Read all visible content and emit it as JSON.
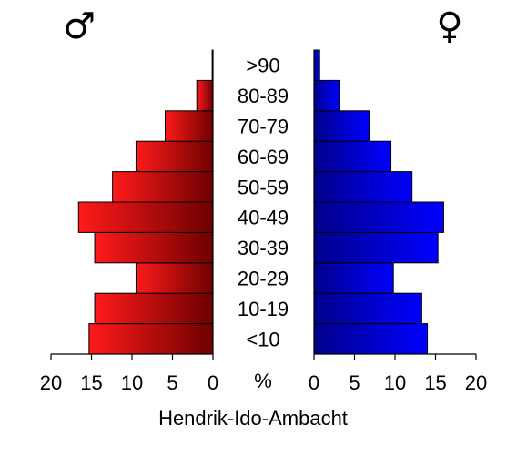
{
  "symbols": {
    "male": "♂",
    "female": "♀"
  },
  "colors": {
    "male_light": "#ff1a1a",
    "male_dark": "#6e0000",
    "female_light": "#0000ff",
    "female_dark": "#00008a",
    "bar_stroke": "#000000"
  },
  "chart_data": {
    "type": "bar",
    "subtype": "population-pyramid",
    "title": "Hendrik-Ido-Ambacht",
    "unit_label": "%",
    "categories": [
      "<10",
      "10-19",
      "20-29",
      "30-39",
      "40-49",
      "50-59",
      "60-69",
      "70-79",
      "80-89",
      ">90"
    ],
    "series": [
      {
        "sex": "male",
        "values": [
          15.3,
          14.6,
          9.5,
          14.6,
          16.6,
          12.4,
          9.5,
          5.9,
          2.0,
          0.1
        ]
      },
      {
        "sex": "female",
        "values": [
          14.0,
          13.3,
          9.8,
          15.3,
          16.0,
          12.1,
          9.5,
          6.8,
          3.1,
          0.7
        ]
      }
    ],
    "xlim": [
      0,
      20
    ],
    "ticks": [
      0,
      5,
      10,
      15,
      20
    ]
  }
}
